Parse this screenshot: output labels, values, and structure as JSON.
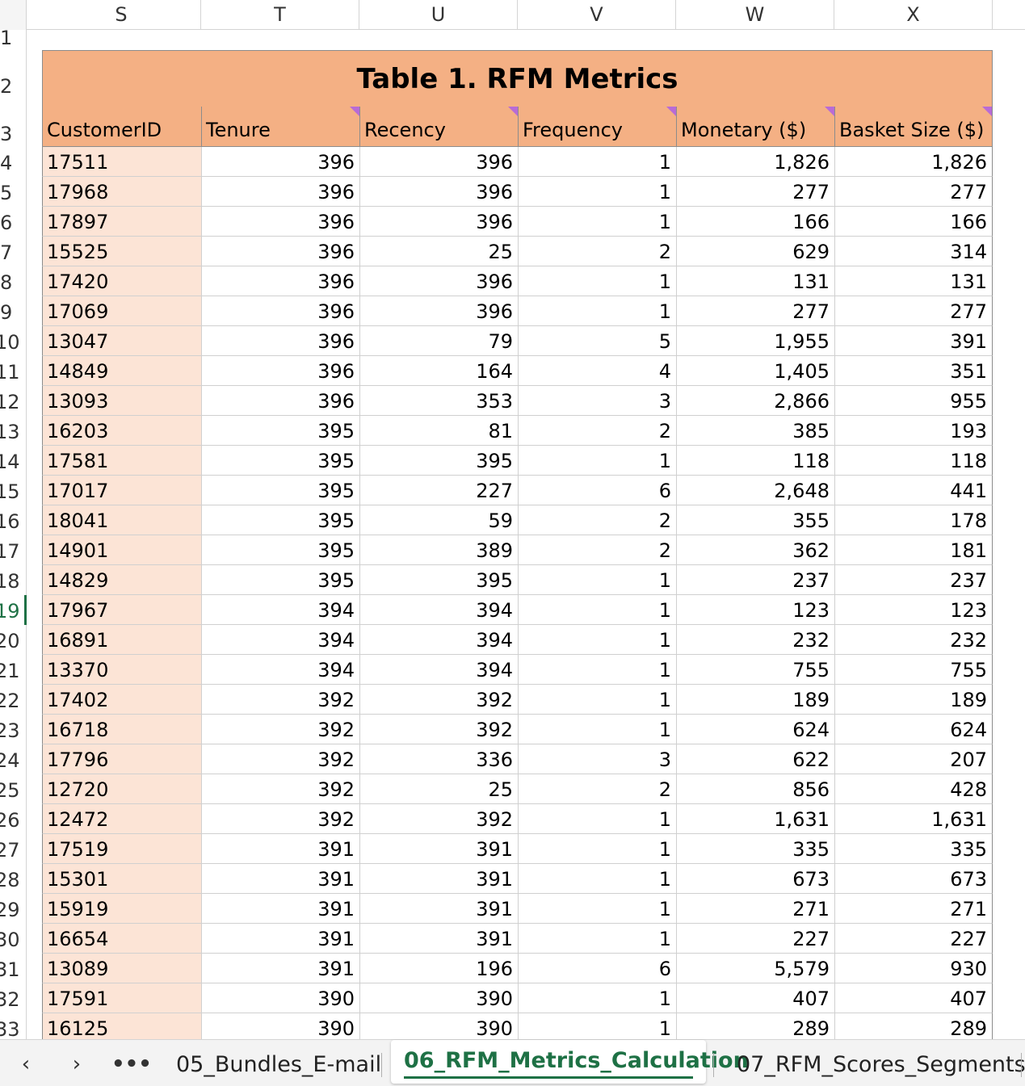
{
  "columns": [
    "S",
    "T",
    "U",
    "V",
    "W",
    "X"
  ],
  "row_numbers": [
    "1",
    "2",
    "3",
    "4",
    "5",
    "6",
    "7",
    "8",
    "9",
    "10",
    "11",
    "12",
    "13",
    "14",
    "15",
    "16",
    "17",
    "18",
    "19",
    "20",
    "21",
    "22",
    "23",
    "24",
    "25",
    "26",
    "27",
    "28",
    "29",
    "30",
    "31",
    "32",
    "33"
  ],
  "active_row": "19",
  "table": {
    "title": "Table 1. RFM Metrics",
    "headers": [
      "CustomerID",
      "Tenure",
      "Recency",
      "Frequency",
      "Monetary ($)",
      "Basket Size ($)"
    ],
    "rows": [
      [
        "17511",
        "396",
        "396",
        "1",
        "1,826",
        "1,826"
      ],
      [
        "17968",
        "396",
        "396",
        "1",
        "277",
        "277"
      ],
      [
        "17897",
        "396",
        "396",
        "1",
        "166",
        "166"
      ],
      [
        "15525",
        "396",
        "25",
        "2",
        "629",
        "314"
      ],
      [
        "17420",
        "396",
        "396",
        "1",
        "131",
        "131"
      ],
      [
        "17069",
        "396",
        "396",
        "1",
        "277",
        "277"
      ],
      [
        "13047",
        "396",
        "79",
        "5",
        "1,955",
        "391"
      ],
      [
        "14849",
        "396",
        "164",
        "4",
        "1,405",
        "351"
      ],
      [
        "13093",
        "396",
        "353",
        "3",
        "2,866",
        "955"
      ],
      [
        "16203",
        "395",
        "81",
        "2",
        "385",
        "193"
      ],
      [
        "17581",
        "395",
        "395",
        "1",
        "118",
        "118"
      ],
      [
        "17017",
        "395",
        "227",
        "6",
        "2,648",
        "441"
      ],
      [
        "18041",
        "395",
        "59",
        "2",
        "355",
        "178"
      ],
      [
        "14901",
        "395",
        "389",
        "2",
        "362",
        "181"
      ],
      [
        "14829",
        "395",
        "395",
        "1",
        "237",
        "237"
      ],
      [
        "17967",
        "394",
        "394",
        "1",
        "123",
        "123"
      ],
      [
        "16891",
        "394",
        "394",
        "1",
        "232",
        "232"
      ],
      [
        "13370",
        "394",
        "394",
        "1",
        "755",
        "755"
      ],
      [
        "17402",
        "392",
        "392",
        "1",
        "189",
        "189"
      ],
      [
        "16718",
        "392",
        "392",
        "1",
        "624",
        "624"
      ],
      [
        "17796",
        "392",
        "336",
        "3",
        "622",
        "207"
      ],
      [
        "12720",
        "392",
        "25",
        "2",
        "856",
        "428"
      ],
      [
        "12472",
        "392",
        "392",
        "1",
        "1,631",
        "1,631"
      ],
      [
        "17519",
        "391",
        "391",
        "1",
        "335",
        "335"
      ],
      [
        "15301",
        "391",
        "391",
        "1",
        "673",
        "673"
      ],
      [
        "15919",
        "391",
        "391",
        "1",
        "271",
        "271"
      ],
      [
        "16654",
        "391",
        "391",
        "1",
        "227",
        "227"
      ],
      [
        "13089",
        "391",
        "196",
        "6",
        "5,579",
        "930"
      ],
      [
        "17591",
        "390",
        "390",
        "1",
        "407",
        "407"
      ],
      [
        "16125",
        "390",
        "390",
        "1",
        "289",
        "289"
      ]
    ]
  },
  "tabs": {
    "prev_icon": "chevron-left-icon",
    "next_icon": "chevron-right-icon",
    "more_icon": "more-icon",
    "items": [
      "05_Bundles_E-mail",
      "06_RFM_Metrics_Calculation",
      "07_RFM_Scores_Segments"
    ],
    "active": "06_RFM_Metrics_Calculation",
    "active_color": "#1e7145"
  },
  "colors": {
    "header_fill": "#f4b084",
    "id_fill": "#fce4d6",
    "comment_marker": "#b86bd6"
  }
}
